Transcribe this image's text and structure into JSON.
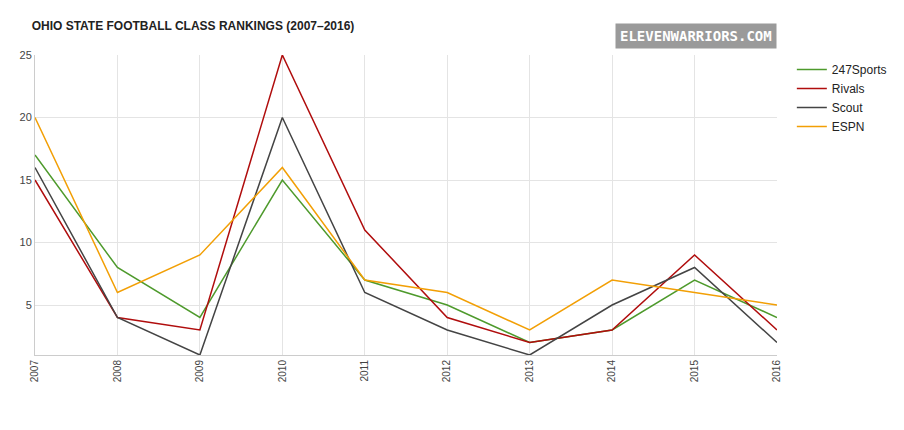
{
  "chart_data": {
    "type": "line",
    "title": "OHIO STATE FOOTBALL CLASS RANKINGS (2007–2016)",
    "annotations": [
      "ELEVENWARRIORS.COM"
    ],
    "x": [
      2007,
      2008,
      2009,
      2010,
      2011,
      2012,
      2013,
      2014,
      2015,
      2016
    ],
    "xlim": [
      2007,
      2016
    ],
    "xticks": [
      2007,
      2008,
      2009,
      2010,
      2011,
      2012,
      2013,
      2014,
      2015,
      2016
    ],
    "ylim": [
      1,
      25
    ],
    "yticks": [
      5,
      10,
      15,
      20,
      25
    ],
    "grid": true,
    "legend": "upper right",
    "series": [
      {
        "name": "247Sports",
        "color": "#4e9a2c",
        "values": [
          17,
          8,
          4,
          15,
          7,
          5,
          2,
          3,
          7,
          4
        ]
      },
      {
        "name": "Rivals",
        "color": "#b00d0d",
        "values": [
          15,
          4,
          3,
          25,
          11,
          4,
          2,
          3,
          9,
          3
        ]
      },
      {
        "name": "Scout",
        "color": "#444444",
        "values": [
          16,
          4,
          1,
          20,
          6,
          3,
          1,
          5,
          8,
          2
        ]
      },
      {
        "name": "ESPN",
        "color": "#f29f05",
        "values": [
          20,
          6,
          9,
          16,
          7,
          6,
          3,
          7,
          6,
          5
        ]
      }
    ]
  }
}
